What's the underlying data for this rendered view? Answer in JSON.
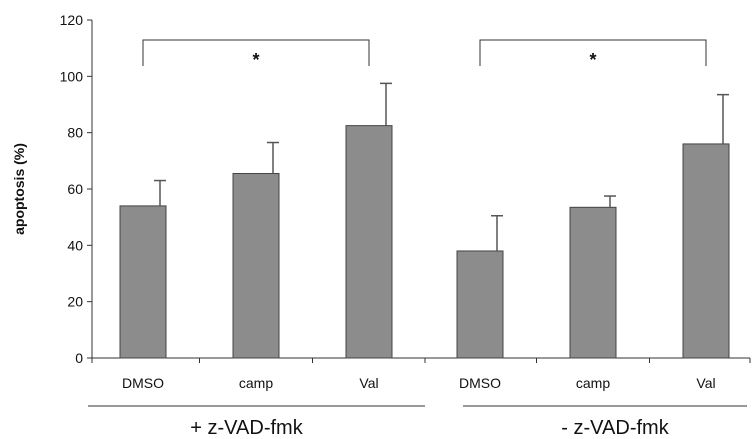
{
  "chart_data": {
    "type": "bar",
    "ylabel": "apoptosis (%)",
    "ylim": [
      0,
      120
    ],
    "yticks": [
      "0",
      "20",
      "40",
      "60",
      "80",
      "100",
      "120"
    ],
    "grid": false,
    "legend": "none",
    "bar_color": "#8c8c8c",
    "groups": [
      {
        "label": "+ z-VAD-fmk",
        "significance": "*",
        "bars": [
          {
            "category": "DMSO",
            "value": 54,
            "error": 9
          },
          {
            "category": "camp",
            "value": 65.5,
            "error": 11
          },
          {
            "category": "Val",
            "value": 82.5,
            "error": 15
          }
        ]
      },
      {
        "label": "- z-VAD-fmk",
        "significance": "*",
        "bars": [
          {
            "category": "DMSO",
            "value": 38,
            "error": 12.5
          },
          {
            "category": "camp",
            "value": 53.5,
            "error": 4
          },
          {
            "category": "Val",
            "value": 76,
            "error": 17.5
          }
        ]
      }
    ]
  }
}
